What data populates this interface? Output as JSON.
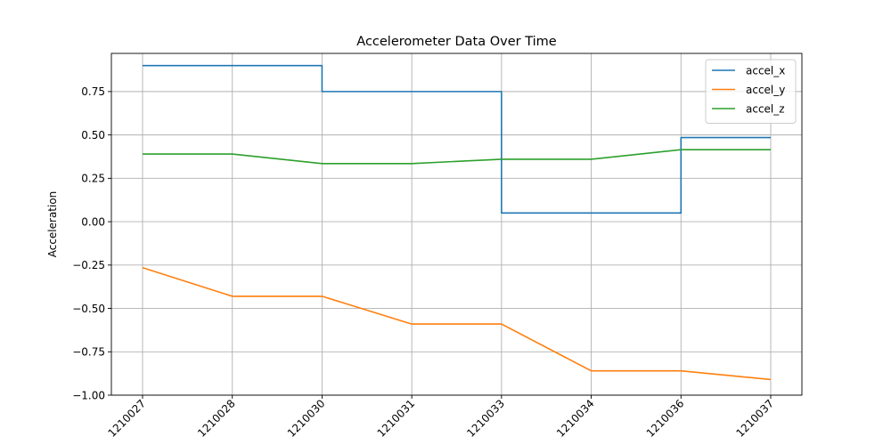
{
  "chart_data": {
    "type": "line",
    "title": "Accelerometer Data Over Time",
    "xlabel": "",
    "ylabel": "Acceleration",
    "x_tick_labels": [
      "1210027",
      "1210028",
      "1210030",
      "1210031",
      "1210033",
      "1210034",
      "1210036",
      "1210037"
    ],
    "x_tick_labels_truncated": true,
    "ylim": [
      -1.0,
      0.97
    ],
    "y_ticks": [
      -1.0,
      -0.75,
      -0.5,
      -0.25,
      0.0,
      0.25,
      0.5,
      0.75
    ],
    "y_tick_labels": [
      "−1.00",
      "−0.75",
      "−0.50",
      "−0.25",
      "0.00",
      "0.25",
      "0.50",
      "0.75"
    ],
    "grid": true,
    "legend_position": "upper right",
    "series": [
      {
        "name": "accel_x",
        "color": "#1f77b4",
        "step": true,
        "values": [
          0.9,
          0.9,
          0.75,
          0.75,
          0.05,
          0.05,
          0.485,
          0.485
        ]
      },
      {
        "name": "accel_y",
        "color": "#ff7f0e",
        "step": false,
        "values": [
          -0.265,
          -0.43,
          -0.43,
          -0.59,
          -0.59,
          -0.86,
          -0.86,
          -0.91
        ]
      },
      {
        "name": "accel_z",
        "color": "#2ca02c",
        "step": false,
        "values": [
          0.39,
          0.39,
          0.335,
          0.335,
          0.36,
          0.36,
          0.415,
          0.415
        ]
      }
    ]
  }
}
